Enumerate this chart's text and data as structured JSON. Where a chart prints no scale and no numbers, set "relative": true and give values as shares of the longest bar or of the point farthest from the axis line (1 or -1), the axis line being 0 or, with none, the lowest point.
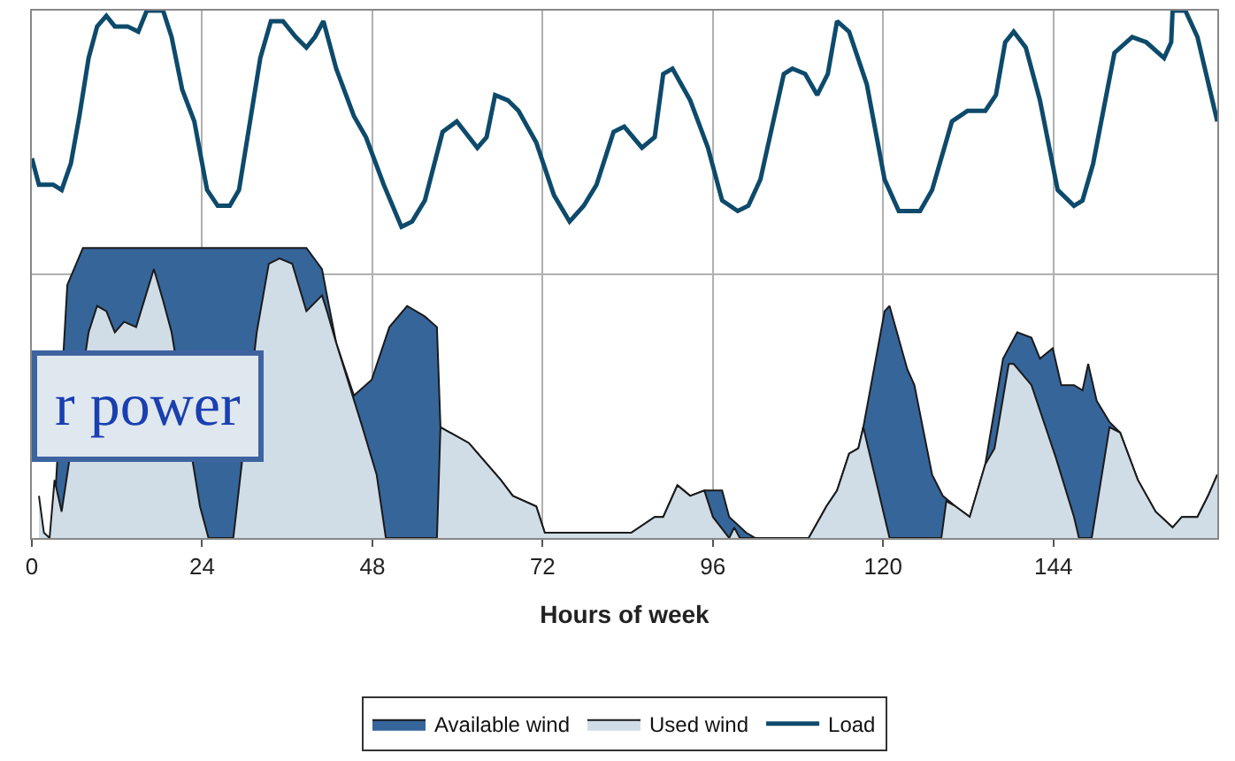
{
  "chart_data": {
    "type": "area",
    "relative": true,
    "xlabel": "Hours of week",
    "xlim": [
      0,
      167.1
    ],
    "xticks": [
      0,
      24,
      48,
      72,
      96,
      120,
      144
    ],
    "grid": true,
    "legend": "bottom",
    "annotations": [
      "r power"
    ],
    "series": [
      {
        "name": "Available wind",
        "color": "#36659a",
        "x": [
          3.0,
          3.7,
          5.0,
          7.2,
          38.7,
          40.9,
          41.6,
          42.9,
          45.4,
          47.9,
          50.4,
          52.9,
          55.4,
          57.1,
          57.6,
          61.6,
          66.1,
          67.8,
          71.1,
          72.3,
          75.3,
          77.8,
          80.3,
          84.5,
          87.8,
          89.0,
          91.0,
          92.8,
          94.8,
          97.3,
          98.3,
          100.7,
          102.0,
          109.5,
          112.0,
          113.5,
          115.2,
          116.5,
          117.2,
          120.2,
          120.9,
          123.4,
          124.4,
          126.9,
          128.4,
          130.2,
          132.2,
          134.4,
          136.9,
          138.9,
          140.9,
          142.1,
          143.9,
          145.1,
          146.9,
          148.1,
          148.9,
          150.1,
          151.9,
          153.4,
          155.9,
          158.4,
          160.8,
          162.1,
          164.3,
          165.8,
          167.1
        ],
        "values": [
          0.01,
          null,
          0.48,
          0.55,
          0.55,
          0.51,
          0.46,
          0.37,
          0.27,
          0.3,
          0.4,
          0.44,
          0.42,
          0.4,
          0.21,
          0.18,
          0.11,
          0.08,
          0.06,
          0.01,
          0.01,
          0.01,
          0.01,
          0.01,
          0.04,
          0.04,
          0.1,
          0.08,
          0.09,
          0.09,
          0.04,
          0.01,
          0,
          0,
          0.06,
          0.09,
          0.16,
          0.17,
          0.21,
          0.43,
          0.44,
          0.32,
          0.29,
          0.12,
          0.08,
          0.06,
          0.04,
          0.14,
          0.34,
          0.39,
          0.38,
          0.34,
          0.36,
          0.29,
          0.29,
          0.28,
          0.33,
          0.26,
          0.22,
          0.2,
          0.11,
          0.05,
          0.02,
          0.04,
          0.04,
          0.08,
          0.12
        ]
      },
      {
        "name": "Used wind",
        "color": "#d0dde6",
        "x": [
          1.0,
          1.7,
          2.5,
          3.2,
          4.2,
          5.5,
          6.7,
          8.0,
          9.2,
          10.5,
          11.7,
          13.0,
          14.7,
          17.2,
          18.5,
          19.7,
          21.7,
          23.7,
          24.9,
          28.4,
          29.7,
          31.7,
          33.4,
          34.9,
          36.7,
          38.7,
          40.9,
          41.6,
          42.9,
          46.6,
          48.6,
          49.9,
          57.1,
          57.6,
          61.6,
          66.1,
          67.8,
          71.1,
          72.3,
          75.3,
          77.8,
          80.3,
          84.5,
          87.8,
          89.0,
          91.0,
          92.8,
          94.8,
          96.0,
          98.3,
          99.0,
          99.8,
          102.0,
          109.5,
          112.0,
          113.5,
          115.2,
          116.5,
          117.2,
          120.9,
          128.2,
          128.9,
          130.2,
          132.2,
          134.4,
          135.7,
          137.7,
          138.4,
          140.9,
          144.4,
          146.9,
          147.6,
          149.4,
          151.9,
          153.4,
          155.9,
          158.4,
          160.8,
          162.1,
          164.3,
          165.8,
          167.1
        ],
        "values": [
          0.08,
          0.01,
          0,
          0.11,
          0.05,
          null,
          null,
          0.39,
          0.44,
          0.43,
          0.39,
          0.41,
          0.4,
          0.51,
          0.45,
          0.39,
          null,
          0.06,
          0,
          0,
          null,
          0.39,
          0.52,
          0.53,
          0.52,
          0.43,
          0.46,
          0.43,
          0.37,
          0.21,
          0.12,
          0,
          0,
          0.21,
          0.18,
          0.11,
          0.08,
          0.06,
          0.01,
          0.01,
          0.01,
          0.01,
          0.01,
          0.04,
          0.04,
          0.1,
          0.08,
          0.09,
          0.04,
          0,
          0.02,
          0,
          0,
          0,
          0.06,
          0.09,
          0.16,
          0.17,
          0.21,
          0,
          0,
          0.07,
          0.06,
          0.04,
          0.14,
          0.17,
          0.33,
          0.33,
          0.29,
          0.15,
          0.04,
          0,
          0,
          0.21,
          0.2,
          0.11,
          0.05,
          0.02,
          0.04,
          0.04,
          0.08,
          0.12
        ]
      },
      {
        "name": "Load",
        "type": "line",
        "color": "#0d4a6b",
        "x": [
          0,
          1.0,
          3.0,
          4.2,
          5.5,
          6.7,
          8.0,
          9.2,
          10.5,
          11.7,
          13.5,
          15.0,
          16.2,
          18.5,
          19.7,
          21.2,
          22.9,
          24.7,
          26.2,
          27.9,
          29.2,
          30.4,
          32.2,
          33.7,
          35.4,
          37.2,
          38.7,
          39.9,
          41.1,
          42.9,
          45.4,
          47.1,
          49.6,
          52.1,
          53.6,
          55.4,
          57.9,
          59.9,
          62.8,
          64.1,
          65.3,
          67.1,
          68.6,
          71.1,
          73.6,
          75.8,
          77.8,
          79.6,
          82.0,
          83.5,
          86.0,
          87.8,
          89.0,
          90.3,
          92.8,
          95.3,
          97.3,
          99.5,
          101.0,
          102.7,
          106.0,
          107.2,
          109.0,
          110.7,
          112.2,
          113.5,
          115.2,
          117.7,
          120.2,
          122.2,
          125.2,
          126.9,
          129.7,
          131.9,
          134.4,
          135.9,
          137.2,
          138.4,
          140.1,
          142.1,
          144.6,
          146.9,
          148.1,
          149.6,
          152.6,
          155.1,
          157.1,
          159.6,
          160.6,
          160.8,
          162.6,
          164.3,
          167.1
        ],
        "values": [
          0.72,
          0.67,
          0.67,
          0.66,
          0.71,
          0.8,
          0.91,
          0.97,
          0.99,
          0.97,
          0.97,
          0.96,
          1.0,
          1.0,
          0.95,
          0.85,
          0.79,
          0.66,
          0.63,
          0.63,
          0.66,
          0.76,
          0.91,
          0.98,
          0.98,
          0.95,
          0.93,
          0.95,
          0.98,
          0.89,
          0.8,
          0.76,
          0.67,
          0.59,
          0.6,
          0.64,
          0.77,
          0.79,
          0.74,
          0.76,
          0.84,
          0.83,
          0.81,
          0.75,
          0.65,
          0.6,
          0.63,
          0.67,
          0.77,
          0.78,
          0.74,
          0.76,
          0.88,
          0.89,
          0.83,
          0.74,
          0.64,
          0.62,
          0.63,
          0.68,
          0.88,
          0.89,
          0.88,
          0.84,
          0.88,
          0.98,
          0.96,
          0.86,
          0.68,
          0.62,
          0.62,
          0.66,
          0.79,
          0.81,
          0.81,
          0.84,
          0.94,
          0.96,
          0.93,
          0.83,
          0.66,
          0.63,
          0.64,
          0.71,
          0.92,
          0.95,
          0.94,
          0.91,
          0.94,
          1.0,
          1.0,
          0.95,
          0.79
        ]
      }
    ]
  }
}
